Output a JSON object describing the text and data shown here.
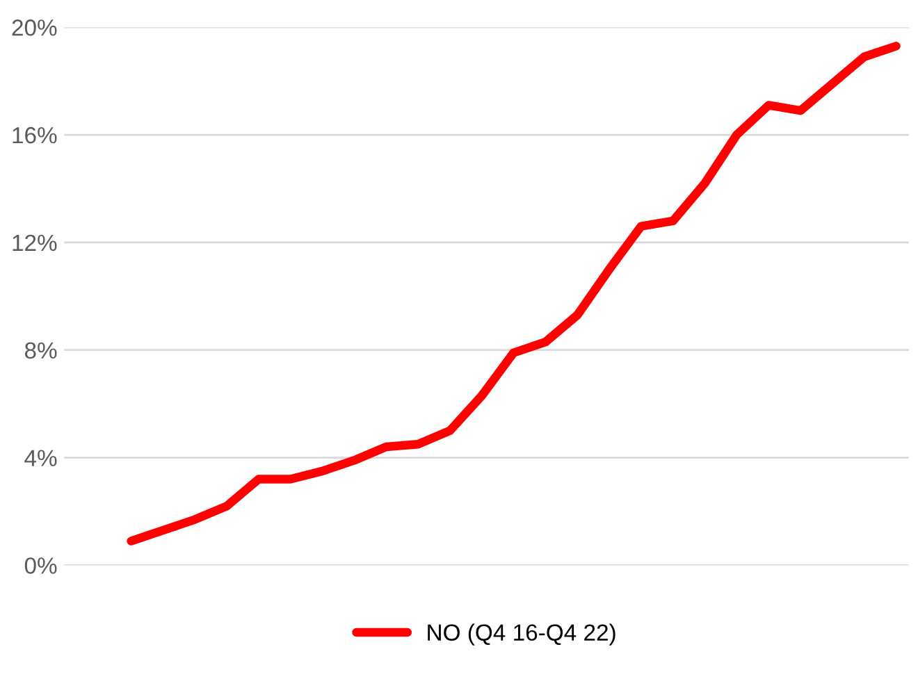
{
  "chart_data": {
    "type": "line",
    "categories": [
      null,
      null,
      null,
      null,
      null,
      null,
      null,
      null,
      null,
      null,
      null,
      null,
      null,
      null,
      null,
      null,
      null,
      null,
      null,
      null,
      null,
      null,
      null,
      null,
      null
    ],
    "series": [
      {
        "name": "NO (Q4 16-Q4 22)",
        "color": "#ff0000",
        "values": [
          0.9,
          1.3,
          1.7,
          2.2,
          3.2,
          3.2,
          3.5,
          3.9,
          4.4,
          4.5,
          5.0,
          6.3,
          7.9,
          8.3,
          9.3,
          11.0,
          12.6,
          12.8,
          14.2,
          16.0,
          17.1,
          16.9,
          17.9,
          18.9,
          19.3
        ]
      }
    ],
    "ylim": [
      0,
      20
    ],
    "yticks": [
      {
        "value": 0,
        "label": "0%"
      },
      {
        "value": 4,
        "label": "4%"
      },
      {
        "value": 8,
        "label": "8%"
      },
      {
        "value": 12,
        "label": "12%"
      },
      {
        "value": 16,
        "label": "16%"
      },
      {
        "value": 20,
        "label": "20%"
      }
    ],
    "grid": "y",
    "legend": "bottom",
    "tick_labels": "y",
    "marker": "none",
    "line_style": "solid"
  }
}
